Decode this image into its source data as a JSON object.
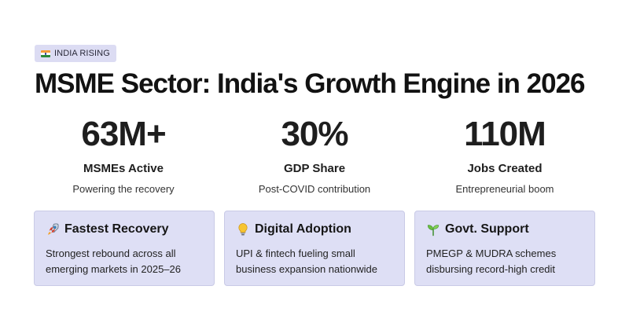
{
  "badge": {
    "flag": "india-flag-icon",
    "label": "INDIA RISING"
  },
  "title": "MSME Sector: India's Growth Engine in 2026",
  "stats": [
    {
      "value": "63M+",
      "label": "MSMEs Active",
      "sub": "Powering the recovery"
    },
    {
      "value": "30%",
      "label": "GDP Share",
      "sub": "Post-COVID contribution"
    },
    {
      "value": "110M",
      "label": "Jobs Created",
      "sub": "Entrepreneurial boom"
    }
  ],
  "cards": [
    {
      "icon": "rocket-icon",
      "title": "Fastest Recovery",
      "text": "Strongest rebound across all emerging markets in 2025–26"
    },
    {
      "icon": "lightbulb-icon",
      "title": "Digital Adoption",
      "text": "UPI & fintech fueling small business expansion nationwide"
    },
    {
      "icon": "seedling-icon",
      "title": "Govt. Support",
      "text": "PMEGP & MUDRA schemes disbursing record-high credit"
    }
  ],
  "colors": {
    "badge_bg": "#dcdcf3",
    "card_bg": "#dedff5",
    "card_border": "#c9cae6",
    "text": "#161616"
  }
}
